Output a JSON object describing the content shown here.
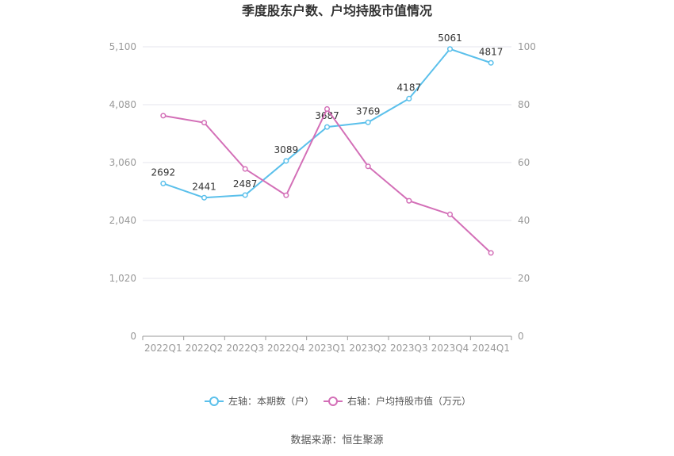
{
  "chart_data": {
    "type": "line",
    "title": "季度股东户数、户均持股市值情况",
    "categories": [
      "2022Q1",
      "2022Q2",
      "2022Q3",
      "2022Q4",
      "2023Q1",
      "2023Q2",
      "2023Q3",
      "2023Q4",
      "2024Q1"
    ],
    "y_left": {
      "min": 0,
      "max": 5100,
      "ticks": [
        "0",
        "1,020",
        "2,040",
        "3,060",
        "4,080",
        "5,100"
      ],
      "tick_values": [
        0,
        1020,
        2040,
        3060,
        4080,
        5100
      ]
    },
    "y_right": {
      "min": 0,
      "max": 100,
      "ticks": [
        "0",
        "20",
        "40",
        "60",
        "80",
        "100"
      ],
      "tick_values": [
        0,
        20,
        40,
        60,
        80,
        100
      ]
    },
    "grid": true,
    "legend_position": "bottom",
    "series": [
      {
        "name": "左轴：本期数（户）",
        "axis": "left",
        "color": "#5bc0eb",
        "values": [
          2692,
          2441,
          2487,
          3089,
          3687,
          3769,
          4187,
          5061,
          4817
        ],
        "labels": [
          "2692",
          "2441",
          "2487",
          "3089",
          "3687",
          "3769",
          "4187",
          "5061",
          "4817"
        ]
      },
      {
        "name": "右轴：户均持股市值（万元）",
        "axis": "right",
        "color": "#d36fb7",
        "values": [
          76.2,
          73.8,
          57.8,
          48.7,
          78.5,
          58.7,
          46.8,
          42.1,
          28.8
        ]
      }
    ],
    "source": "数据来源：恒生聚源"
  }
}
